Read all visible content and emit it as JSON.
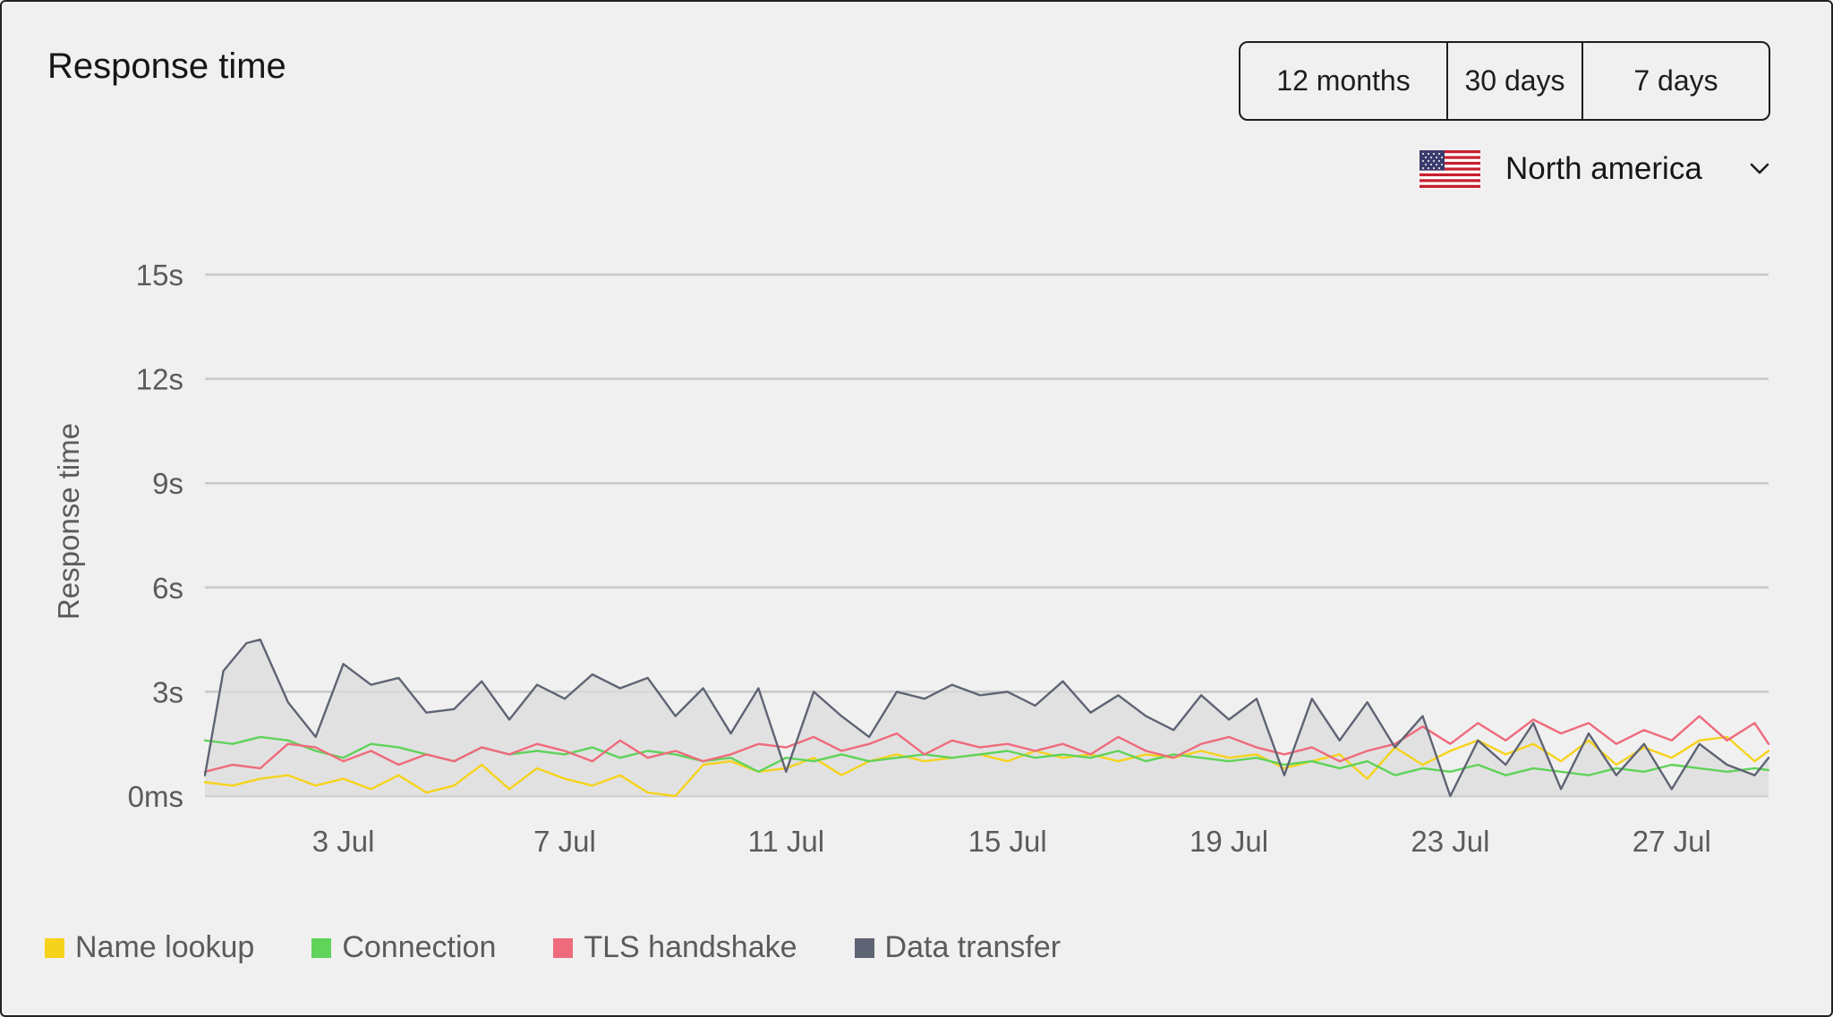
{
  "header": {
    "title": "Response time"
  },
  "range_selector": {
    "options": [
      "12 months",
      "30 days",
      "7 days"
    ]
  },
  "region": {
    "label": "North america",
    "flag": "us-flag-icon"
  },
  "colors": {
    "name_lookup": "#f5d31c",
    "connection": "#5fd35a",
    "tls_handshake": "#ee6b7c",
    "data_transfer": "#5e6473",
    "grid": "#c8c8c8",
    "area_fill": "#dcdcde"
  },
  "chart_data": {
    "type": "line",
    "title": "",
    "ylabel": "Response time",
    "ylim": [
      0,
      15
    ],
    "yticks": [
      {
        "value": 0,
        "label": "0ms"
      },
      {
        "value": 3,
        "label": "3s"
      },
      {
        "value": 6,
        "label": "6s"
      },
      {
        "value": 9,
        "label": "9s"
      },
      {
        "value": 12,
        "label": "12s"
      },
      {
        "value": 15,
        "label": "15s"
      }
    ],
    "x_range": [
      "2025-06-30T12:00",
      "2025-07-28T18:00"
    ],
    "xticks": [
      {
        "date": "2025-07-03",
        "label": "3 Jul"
      },
      {
        "date": "2025-07-07",
        "label": "7 Jul"
      },
      {
        "date": "2025-07-11",
        "label": "11 Jul"
      },
      {
        "date": "2025-07-15",
        "label": "15 Jul"
      },
      {
        "date": "2025-07-19",
        "label": "19 Jul"
      },
      {
        "date": "2025-07-23",
        "label": "23 Jul"
      },
      {
        "date": "2025-07-27",
        "label": "27 Jul"
      }
    ],
    "grid": true,
    "legend_position": "bottom-left",
    "series": [
      {
        "name": "Name lookup",
        "color": "#f5d31c",
        "points": [
          [
            "2025-06-30T12:00",
            0.4
          ],
          [
            "2025-07-01T00:00",
            0.3
          ],
          [
            "2025-07-01T12:00",
            0.5
          ],
          [
            "2025-07-02T00:00",
            0.6
          ],
          [
            "2025-07-02T12:00",
            0.3
          ],
          [
            "2025-07-03T00:00",
            0.5
          ],
          [
            "2025-07-03T12:00",
            0.2
          ],
          [
            "2025-07-04T00:00",
            0.6
          ],
          [
            "2025-07-04T12:00",
            0.1
          ],
          [
            "2025-07-05T00:00",
            0.3
          ],
          [
            "2025-07-05T12:00",
            0.9
          ],
          [
            "2025-07-06T00:00",
            0.2
          ],
          [
            "2025-07-06T12:00",
            0.8
          ],
          [
            "2025-07-07T00:00",
            0.5
          ],
          [
            "2025-07-07T12:00",
            0.3
          ],
          [
            "2025-07-08T00:00",
            0.6
          ],
          [
            "2025-07-08T12:00",
            0.1
          ],
          [
            "2025-07-09T00:00",
            0.0
          ],
          [
            "2025-07-09T12:00",
            0.9
          ],
          [
            "2025-07-10T00:00",
            1.0
          ],
          [
            "2025-07-10T12:00",
            0.7
          ],
          [
            "2025-07-11T00:00",
            0.8
          ],
          [
            "2025-07-11T12:00",
            1.1
          ],
          [
            "2025-07-12T00:00",
            0.6
          ],
          [
            "2025-07-12T12:00",
            1.0
          ],
          [
            "2025-07-13T00:00",
            1.2
          ],
          [
            "2025-07-13T12:00",
            1.0
          ],
          [
            "2025-07-14T00:00",
            1.1
          ],
          [
            "2025-07-14T12:00",
            1.2
          ],
          [
            "2025-07-15T00:00",
            1.0
          ],
          [
            "2025-07-15T12:00",
            1.3
          ],
          [
            "2025-07-16T00:00",
            1.1
          ],
          [
            "2025-07-16T12:00",
            1.2
          ],
          [
            "2025-07-17T00:00",
            1.0
          ],
          [
            "2025-07-17T12:00",
            1.2
          ],
          [
            "2025-07-18T00:00",
            1.1
          ],
          [
            "2025-07-18T12:00",
            1.3
          ],
          [
            "2025-07-19T00:00",
            1.1
          ],
          [
            "2025-07-19T12:00",
            1.2
          ],
          [
            "2025-07-20T00:00",
            0.8
          ],
          [
            "2025-07-20T12:00",
            1.0
          ],
          [
            "2025-07-21T00:00",
            1.2
          ],
          [
            "2025-07-21T12:00",
            0.5
          ],
          [
            "2025-07-22T00:00",
            1.4
          ],
          [
            "2025-07-22T12:00",
            0.9
          ],
          [
            "2025-07-23T00:00",
            1.3
          ],
          [
            "2025-07-23T12:00",
            1.6
          ],
          [
            "2025-07-24T00:00",
            1.2
          ],
          [
            "2025-07-24T12:00",
            1.5
          ],
          [
            "2025-07-25T00:00",
            1.0
          ],
          [
            "2025-07-25T12:00",
            1.6
          ],
          [
            "2025-07-26T00:00",
            0.9
          ],
          [
            "2025-07-26T12:00",
            1.4
          ],
          [
            "2025-07-27T00:00",
            1.1
          ],
          [
            "2025-07-27T12:00",
            1.6
          ],
          [
            "2025-07-28T00:00",
            1.7
          ],
          [
            "2025-07-28T12:00",
            1.0
          ],
          [
            "2025-07-28T18:00",
            1.3
          ]
        ]
      },
      {
        "name": "Connection",
        "color": "#5fd35a",
        "points": [
          [
            "2025-06-30T12:00",
            1.6
          ],
          [
            "2025-07-01T00:00",
            1.5
          ],
          [
            "2025-07-01T12:00",
            1.7
          ],
          [
            "2025-07-02T00:00",
            1.6
          ],
          [
            "2025-07-02T12:00",
            1.3
          ],
          [
            "2025-07-03T00:00",
            1.1
          ],
          [
            "2025-07-03T12:00",
            1.5
          ],
          [
            "2025-07-04T00:00",
            1.4
          ],
          [
            "2025-07-04T12:00",
            1.2
          ],
          [
            "2025-07-05T00:00",
            1.0
          ],
          [
            "2025-07-05T12:00",
            1.4
          ],
          [
            "2025-07-06T00:00",
            1.2
          ],
          [
            "2025-07-06T12:00",
            1.3
          ],
          [
            "2025-07-07T00:00",
            1.2
          ],
          [
            "2025-07-07T12:00",
            1.4
          ],
          [
            "2025-07-08T00:00",
            1.1
          ],
          [
            "2025-07-08T12:00",
            1.3
          ],
          [
            "2025-07-09T00:00",
            1.2
          ],
          [
            "2025-07-09T12:00",
            1.0
          ],
          [
            "2025-07-10T00:00",
            1.1
          ],
          [
            "2025-07-10T12:00",
            0.7
          ],
          [
            "2025-07-11T00:00",
            1.1
          ],
          [
            "2025-07-11T12:00",
            1.0
          ],
          [
            "2025-07-12T00:00",
            1.2
          ],
          [
            "2025-07-12T12:00",
            1.0
          ],
          [
            "2025-07-13T00:00",
            1.1
          ],
          [
            "2025-07-13T12:00",
            1.2
          ],
          [
            "2025-07-14T00:00",
            1.1
          ],
          [
            "2025-07-14T12:00",
            1.2
          ],
          [
            "2025-07-15T00:00",
            1.3
          ],
          [
            "2025-07-15T12:00",
            1.1
          ],
          [
            "2025-07-16T00:00",
            1.2
          ],
          [
            "2025-07-16T12:00",
            1.1
          ],
          [
            "2025-07-17T00:00",
            1.3
          ],
          [
            "2025-07-17T12:00",
            1.0
          ],
          [
            "2025-07-18T00:00",
            1.2
          ],
          [
            "2025-07-18T12:00",
            1.1
          ],
          [
            "2025-07-19T00:00",
            1.0
          ],
          [
            "2025-07-19T12:00",
            1.1
          ],
          [
            "2025-07-20T00:00",
            0.9
          ],
          [
            "2025-07-20T12:00",
            1.0
          ],
          [
            "2025-07-21T00:00",
            0.8
          ],
          [
            "2025-07-21T12:00",
            1.0
          ],
          [
            "2025-07-22T00:00",
            0.6
          ],
          [
            "2025-07-22T12:00",
            0.8
          ],
          [
            "2025-07-23T00:00",
            0.7
          ],
          [
            "2025-07-23T12:00",
            0.9
          ],
          [
            "2025-07-24T00:00",
            0.6
          ],
          [
            "2025-07-24T12:00",
            0.8
          ],
          [
            "2025-07-25T00:00",
            0.7
          ],
          [
            "2025-07-25T12:00",
            0.6
          ],
          [
            "2025-07-26T00:00",
            0.8
          ],
          [
            "2025-07-26T12:00",
            0.7
          ],
          [
            "2025-07-27T00:00",
            0.9
          ],
          [
            "2025-07-27T12:00",
            0.8
          ],
          [
            "2025-07-28T00:00",
            0.7
          ],
          [
            "2025-07-28T12:00",
            0.8
          ],
          [
            "2025-07-28T18:00",
            0.75
          ]
        ]
      },
      {
        "name": "TLS handshake",
        "color": "#ee6b7c",
        "points": [
          [
            "2025-06-30T12:00",
            0.7
          ],
          [
            "2025-07-01T00:00",
            0.9
          ],
          [
            "2025-07-01T12:00",
            0.8
          ],
          [
            "2025-07-02T00:00",
            1.5
          ],
          [
            "2025-07-02T12:00",
            1.4
          ],
          [
            "2025-07-03T00:00",
            1.0
          ],
          [
            "2025-07-03T12:00",
            1.3
          ],
          [
            "2025-07-04T00:00",
            0.9
          ],
          [
            "2025-07-04T12:00",
            1.2
          ],
          [
            "2025-07-05T00:00",
            1.0
          ],
          [
            "2025-07-05T12:00",
            1.4
          ],
          [
            "2025-07-06T00:00",
            1.2
          ],
          [
            "2025-07-06T12:00",
            1.5
          ],
          [
            "2025-07-07T00:00",
            1.3
          ],
          [
            "2025-07-07T12:00",
            1.0
          ],
          [
            "2025-07-08T00:00",
            1.6
          ],
          [
            "2025-07-08T12:00",
            1.1
          ],
          [
            "2025-07-09T00:00",
            1.3
          ],
          [
            "2025-07-09T12:00",
            1.0
          ],
          [
            "2025-07-10T00:00",
            1.2
          ],
          [
            "2025-07-10T12:00",
            1.5
          ],
          [
            "2025-07-11T00:00",
            1.4
          ],
          [
            "2025-07-11T12:00",
            1.7
          ],
          [
            "2025-07-12T00:00",
            1.3
          ],
          [
            "2025-07-12T12:00",
            1.5
          ],
          [
            "2025-07-13T00:00",
            1.8
          ],
          [
            "2025-07-13T12:00",
            1.2
          ],
          [
            "2025-07-14T00:00",
            1.6
          ],
          [
            "2025-07-14T12:00",
            1.4
          ],
          [
            "2025-07-15T00:00",
            1.5
          ],
          [
            "2025-07-15T12:00",
            1.3
          ],
          [
            "2025-07-16T00:00",
            1.5
          ],
          [
            "2025-07-16T12:00",
            1.2
          ],
          [
            "2025-07-17T00:00",
            1.7
          ],
          [
            "2025-07-17T12:00",
            1.3
          ],
          [
            "2025-07-18T00:00",
            1.1
          ],
          [
            "2025-07-18T12:00",
            1.5
          ],
          [
            "2025-07-19T00:00",
            1.7
          ],
          [
            "2025-07-19T12:00",
            1.4
          ],
          [
            "2025-07-20T00:00",
            1.2
          ],
          [
            "2025-07-20T12:00",
            1.4
          ],
          [
            "2025-07-21T00:00",
            1.0
          ],
          [
            "2025-07-21T12:00",
            1.3
          ],
          [
            "2025-07-22T00:00",
            1.5
          ],
          [
            "2025-07-22T12:00",
            2.0
          ],
          [
            "2025-07-23T00:00",
            1.5
          ],
          [
            "2025-07-23T12:00",
            2.1
          ],
          [
            "2025-07-24T00:00",
            1.6
          ],
          [
            "2025-07-24T12:00",
            2.2
          ],
          [
            "2025-07-25T00:00",
            1.8
          ],
          [
            "2025-07-25T12:00",
            2.1
          ],
          [
            "2025-07-26T00:00",
            1.5
          ],
          [
            "2025-07-26T12:00",
            1.9
          ],
          [
            "2025-07-27T00:00",
            1.6
          ],
          [
            "2025-07-27T12:00",
            2.3
          ],
          [
            "2025-07-28T00:00",
            1.6
          ],
          [
            "2025-07-28T12:00",
            2.1
          ],
          [
            "2025-07-28T18:00",
            1.5
          ]
        ]
      },
      {
        "name": "Data transfer",
        "color": "#5e6473",
        "points": [
          [
            "2025-06-30T12:00",
            0.6
          ],
          [
            "2025-06-30T20:00",
            3.6
          ],
          [
            "2025-07-01T06:00",
            4.4
          ],
          [
            "2025-07-01T12:00",
            4.5
          ],
          [
            "2025-07-01T18:00",
            3.6
          ],
          [
            "2025-07-02T00:00",
            2.7
          ],
          [
            "2025-07-02T12:00",
            1.7
          ],
          [
            "2025-07-03T00:00",
            3.8
          ],
          [
            "2025-07-03T12:00",
            3.2
          ],
          [
            "2025-07-04T00:00",
            3.4
          ],
          [
            "2025-07-04T12:00",
            2.4
          ],
          [
            "2025-07-05T00:00",
            2.5
          ],
          [
            "2025-07-05T12:00",
            3.3
          ],
          [
            "2025-07-06T00:00",
            2.2
          ],
          [
            "2025-07-06T12:00",
            3.2
          ],
          [
            "2025-07-07T00:00",
            2.8
          ],
          [
            "2025-07-07T12:00",
            3.5
          ],
          [
            "2025-07-08T00:00",
            3.1
          ],
          [
            "2025-07-08T12:00",
            3.4
          ],
          [
            "2025-07-09T00:00",
            2.3
          ],
          [
            "2025-07-09T12:00",
            3.1
          ],
          [
            "2025-07-10T00:00",
            1.8
          ],
          [
            "2025-07-10T12:00",
            3.1
          ],
          [
            "2025-07-11T00:00",
            0.7
          ],
          [
            "2025-07-11T12:00",
            3.0
          ],
          [
            "2025-07-12T00:00",
            2.3
          ],
          [
            "2025-07-12T12:00",
            1.7
          ],
          [
            "2025-07-13T00:00",
            3.0
          ],
          [
            "2025-07-13T12:00",
            2.8
          ],
          [
            "2025-07-14T00:00",
            3.2
          ],
          [
            "2025-07-14T12:00",
            2.9
          ],
          [
            "2025-07-15T00:00",
            3.0
          ],
          [
            "2025-07-15T12:00",
            2.6
          ],
          [
            "2025-07-16T00:00",
            3.3
          ],
          [
            "2025-07-16T12:00",
            2.4
          ],
          [
            "2025-07-17T00:00",
            2.9
          ],
          [
            "2025-07-17T12:00",
            2.3
          ],
          [
            "2025-07-18T00:00",
            1.9
          ],
          [
            "2025-07-18T12:00",
            2.9
          ],
          [
            "2025-07-19T00:00",
            2.2
          ],
          [
            "2025-07-19T12:00",
            2.8
          ],
          [
            "2025-07-20T00:00",
            0.6
          ],
          [
            "2025-07-20T12:00",
            2.8
          ],
          [
            "2025-07-21T00:00",
            1.6
          ],
          [
            "2025-07-21T12:00",
            2.7
          ],
          [
            "2025-07-22T00:00",
            1.4
          ],
          [
            "2025-07-22T12:00",
            2.3
          ],
          [
            "2025-07-23T00:00",
            0.0
          ],
          [
            "2025-07-23T12:00",
            1.6
          ],
          [
            "2025-07-24T00:00",
            0.9
          ],
          [
            "2025-07-24T12:00",
            2.1
          ],
          [
            "2025-07-25T00:00",
            0.2
          ],
          [
            "2025-07-25T12:00",
            1.8
          ],
          [
            "2025-07-26T00:00",
            0.6
          ],
          [
            "2025-07-26T12:00",
            1.5
          ],
          [
            "2025-07-27T00:00",
            0.2
          ],
          [
            "2025-07-27T12:00",
            1.5
          ],
          [
            "2025-07-28T00:00",
            0.9
          ],
          [
            "2025-07-28T12:00",
            0.6
          ],
          [
            "2025-07-28T18:00",
            1.1
          ]
        ]
      }
    ]
  }
}
